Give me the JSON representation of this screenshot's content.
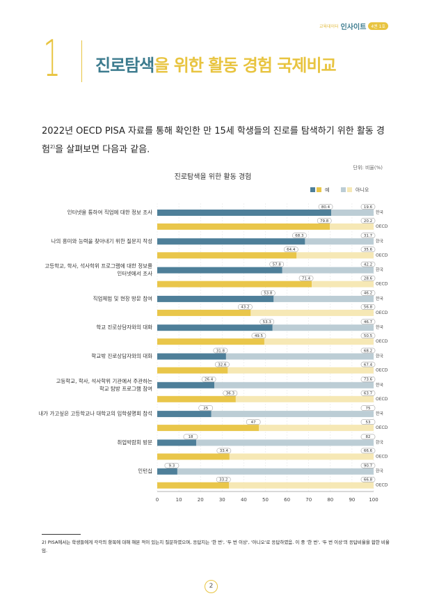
{
  "header": {
    "series_pre": "교육데이터",
    "series_name": "인사이트",
    "issue": "4권 1호"
  },
  "section_number": "1",
  "heading": {
    "highlight": "진로탐색",
    "rest": "을 위한 활동 경험 국제비교"
  },
  "paragraph": {
    "text": "2022년 OECD PISA 자료를 통해 확인한 만 15세 학생들의 진로를 탐색하기 위한 활동 경험",
    "sup": "2)",
    "tail": "을 살펴보면 다음과 같음."
  },
  "chart_data": {
    "type": "stacked_bar_horizontal",
    "title": "진로탐색을 위한 활동 경험",
    "unit": "단위: 비율(%)",
    "groups": [
      "한국",
      "OECD"
    ],
    "categories": [
      [
        "인터넷을 통하여 직업에 대한 정보 조사"
      ],
      [
        "나의 흥미와 능력을 찾아내기 위한 질문지 작성"
      ],
      [
        "고등학교, 학사, 석사학위 프로그램에 대한 정보를",
        "인터넷에서 조사"
      ],
      [
        "직업체험 및 현장 방문 참여"
      ],
      [
        "학교 진로상담자와의 대화"
      ],
      [
        "학교밖 진로상담자와의 대화"
      ],
      [
        "고등학교, 학사, 석사학위 기관에서 주관하는",
        "학교 탐방 프로그램 참여"
      ],
      [
        "내가 가고싶은 고등학교나 대학교의 입학설명회 참석"
      ],
      [
        "취업박람회 방문"
      ],
      [
        "인턴십"
      ]
    ],
    "series": [
      {
        "name": "예",
        "colors": [
          "#4e7f99",
          "#e9c64a"
        ],
        "values": [
          [
            80.4,
            79.8
          ],
          [
            68.3,
            64.4
          ],
          [
            57.8,
            71.4
          ],
          [
            53.8,
            43.2
          ],
          [
            53.3,
            49.5
          ],
          [
            31.8,
            32.6
          ],
          [
            26.4,
            36.3
          ],
          [
            25,
            47
          ],
          [
            18,
            33.4
          ],
          [
            9.3,
            33.2
          ]
        ]
      },
      {
        "name": "아니오",
        "colors": [
          "#bccdd5",
          "#f6e8b5"
        ],
        "values": [
          [
            19.6,
            20.2
          ],
          [
            31.7,
            35.6
          ],
          [
            42.2,
            28.6
          ],
          [
            46.2,
            56.8
          ],
          [
            46.7,
            50.5
          ],
          [
            68.2,
            67.4
          ],
          [
            73.6,
            63.7
          ],
          [
            75,
            53
          ],
          [
            82,
            66.6
          ],
          [
            90.7,
            66.8
          ]
        ]
      }
    ],
    "xlim": [
      0,
      100
    ],
    "xticks": [
      0,
      10,
      20,
      30,
      40,
      50,
      60,
      70,
      80,
      90,
      100
    ],
    "grid": true
  },
  "footnote": "2) PISA에서는 학생들에게 각각의 항목에 대해 해본 적이 있는지 질문하였으며, 응답지는 '한 번', '두 번 이상', '아니오'로 응답하였음. 이 중 '한 번', '두 번 이상'의 응답비율을 합한 비율임.",
  "page_number": "2"
}
